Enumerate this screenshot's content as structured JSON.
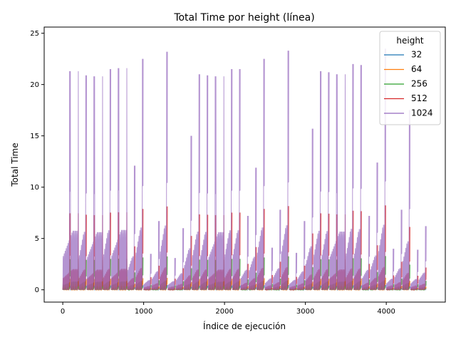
{
  "chart_data": {
    "type": "line",
    "title": "Total Time por height (línea)",
    "xlabel": "Índice de ejecución",
    "ylabel": "Total Time",
    "xlim": [
      -230,
      4730
    ],
    "ylim": [
      -1.2,
      25.6
    ],
    "xticks": [
      0,
      1000,
      2000,
      3000,
      4000
    ],
    "yticks": [
      0,
      5,
      10,
      15,
      20,
      25
    ],
    "grid": false,
    "legend": {
      "title": "height",
      "placement": "top-right"
    },
    "series": [
      {
        "name": "32",
        "color": "#1f77b4",
        "scale": 0.02
      },
      {
        "name": "64",
        "color": "#ff7f0e",
        "scale": 0.05
      },
      {
        "name": "256",
        "color": "#2ca02c",
        "scale": 0.14
      },
      {
        "name": "512",
        "color": "#d62728",
        "scale": 0.35
      },
      {
        "name": "1024",
        "color": "#9467bd",
        "scale": 1.0
      }
    ],
    "blocks": [
      {
        "start": 0,
        "end": 195,
        "peak": 21.3
      },
      {
        "start": 200,
        "end": 295,
        "peak": 20.9
      },
      {
        "start": 300,
        "end": 495,
        "peak": 20.8
      },
      {
        "start": 500,
        "end": 595,
        "peak": 21.5
      },
      {
        "start": 600,
        "end": 795,
        "peak": 21.6
      },
      {
        "start": 800,
        "end": 895,
        "peak": 12.1
      },
      {
        "start": 900,
        "end": 995,
        "peak": 22.5
      },
      {
        "start": 1000,
        "end": 1095,
        "peak": 3.5
      },
      {
        "start": 1100,
        "end": 1195,
        "peak": 6.7
      },
      {
        "start": 1200,
        "end": 1295,
        "peak": 23.2
      },
      {
        "start": 1300,
        "end": 1395,
        "peak": 3.1
      },
      {
        "start": 1400,
        "end": 1495,
        "peak": 6.0
      },
      {
        "start": 1500,
        "end": 1595,
        "peak": 15.0
      },
      {
        "start": 1600,
        "end": 1695,
        "peak": 21.0
      },
      {
        "start": 1700,
        "end": 1795,
        "peak": 20.9
      },
      {
        "start": 1800,
        "end": 1995,
        "peak": 20.8
      },
      {
        "start": 2000,
        "end": 2095,
        "peak": 21.5
      },
      {
        "start": 2100,
        "end": 2195,
        "peak": 21.5
      },
      {
        "start": 2200,
        "end": 2295,
        "peak": 7.2
      },
      {
        "start": 2300,
        "end": 2395,
        "peak": 11.9
      },
      {
        "start": 2400,
        "end": 2495,
        "peak": 22.5
      },
      {
        "start": 2500,
        "end": 2595,
        "peak": 4.1
      },
      {
        "start": 2600,
        "end": 2695,
        "peak": 7.8
      },
      {
        "start": 2700,
        "end": 2795,
        "peak": 23.3
      },
      {
        "start": 2800,
        "end": 2895,
        "peak": 3.6
      },
      {
        "start": 2900,
        "end": 2995,
        "peak": 6.7
      },
      {
        "start": 3000,
        "end": 3095,
        "peak": 15.7
      },
      {
        "start": 3100,
        "end": 3195,
        "peak": 21.3
      },
      {
        "start": 3200,
        "end": 3295,
        "peak": 21.2
      },
      {
        "start": 3300,
        "end": 3495,
        "peak": 21.0
      },
      {
        "start": 3500,
        "end": 3595,
        "peak": 22.0
      },
      {
        "start": 3600,
        "end": 3695,
        "peak": 21.9
      },
      {
        "start": 3700,
        "end": 3795,
        "peak": 7.2
      },
      {
        "start": 3800,
        "end": 3895,
        "peak": 12.4
      },
      {
        "start": 3900,
        "end": 3995,
        "peak": 23.5
      },
      {
        "start": 4000,
        "end": 4095,
        "peak": 4.0
      },
      {
        "start": 4100,
        "end": 4195,
        "peak": 7.8
      },
      {
        "start": 4200,
        "end": 4295,
        "peak": 17.5
      },
      {
        "start": 4300,
        "end": 4395,
        "peak": 3.9
      },
      {
        "start": 4400,
        "end": 4495,
        "peak": 6.2
      }
    ]
  }
}
